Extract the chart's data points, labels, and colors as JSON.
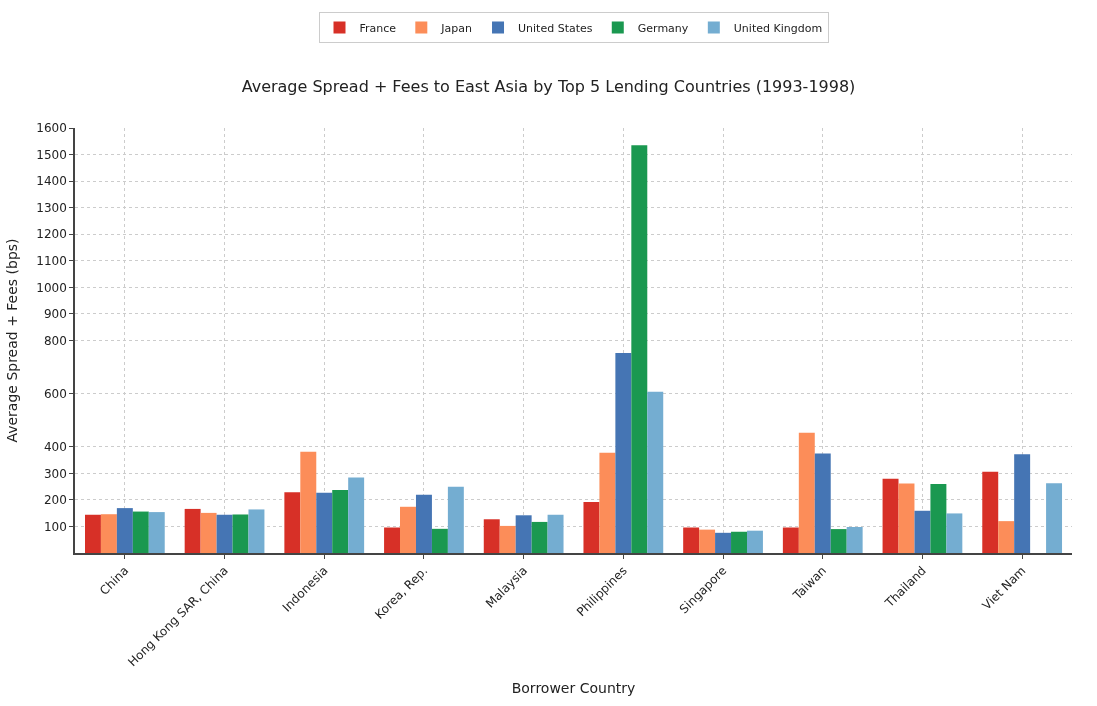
{
  "chart_data": {
    "type": "bar",
    "title": "Average Spread + Fees to East Asia by Top 5 Lending Countries (1993-1998)",
    "xlabel": "Borrower Country",
    "ylabel": "Average Spread + Fees (bps)",
    "categories": [
      "China",
      "Hong Kong SAR, China",
      "Indonesia",
      "Korea, Rep.",
      "Malaysia",
      "Philippines",
      "Singapore",
      "Taiwan",
      "Thailand",
      "Viet Nam"
    ],
    "series": [
      {
        "name": "France",
        "color": "#d73027",
        "values": [
          144,
          166,
          229,
          96,
          127,
          192,
          96,
          96,
          280,
          306
        ]
      },
      {
        "name": "Japan",
        "color": "#fc8d59",
        "values": [
          146,
          151,
          381,
          174,
          102,
          377,
          88,
          453,
          262,
          120
        ]
      },
      {
        "name": "United States",
        "color": "#4575b4",
        "values": [
          169,
          144,
          227,
          219,
          142,
          753,
          76,
          375,
          159,
          372
        ]
      },
      {
        "name": "Germany",
        "color": "#1a9850",
        "values": [
          156,
          145,
          237,
          91,
          117,
          1535,
          80,
          90,
          260,
          null
        ]
      },
      {
        "name": "United Kingdom",
        "color": "#74add1",
        "values": [
          154,
          164,
          284,
          249,
          144,
          607,
          84,
          98,
          149,
          263
        ]
      }
    ],
    "ylim": [
      0,
      1600
    ],
    "yticks": [
      100,
      200,
      300,
      400,
      600,
      800,
      900,
      1000,
      1100,
      1200,
      1300,
      1400,
      1500,
      1600
    ],
    "grid": true,
    "legend": "top"
  }
}
